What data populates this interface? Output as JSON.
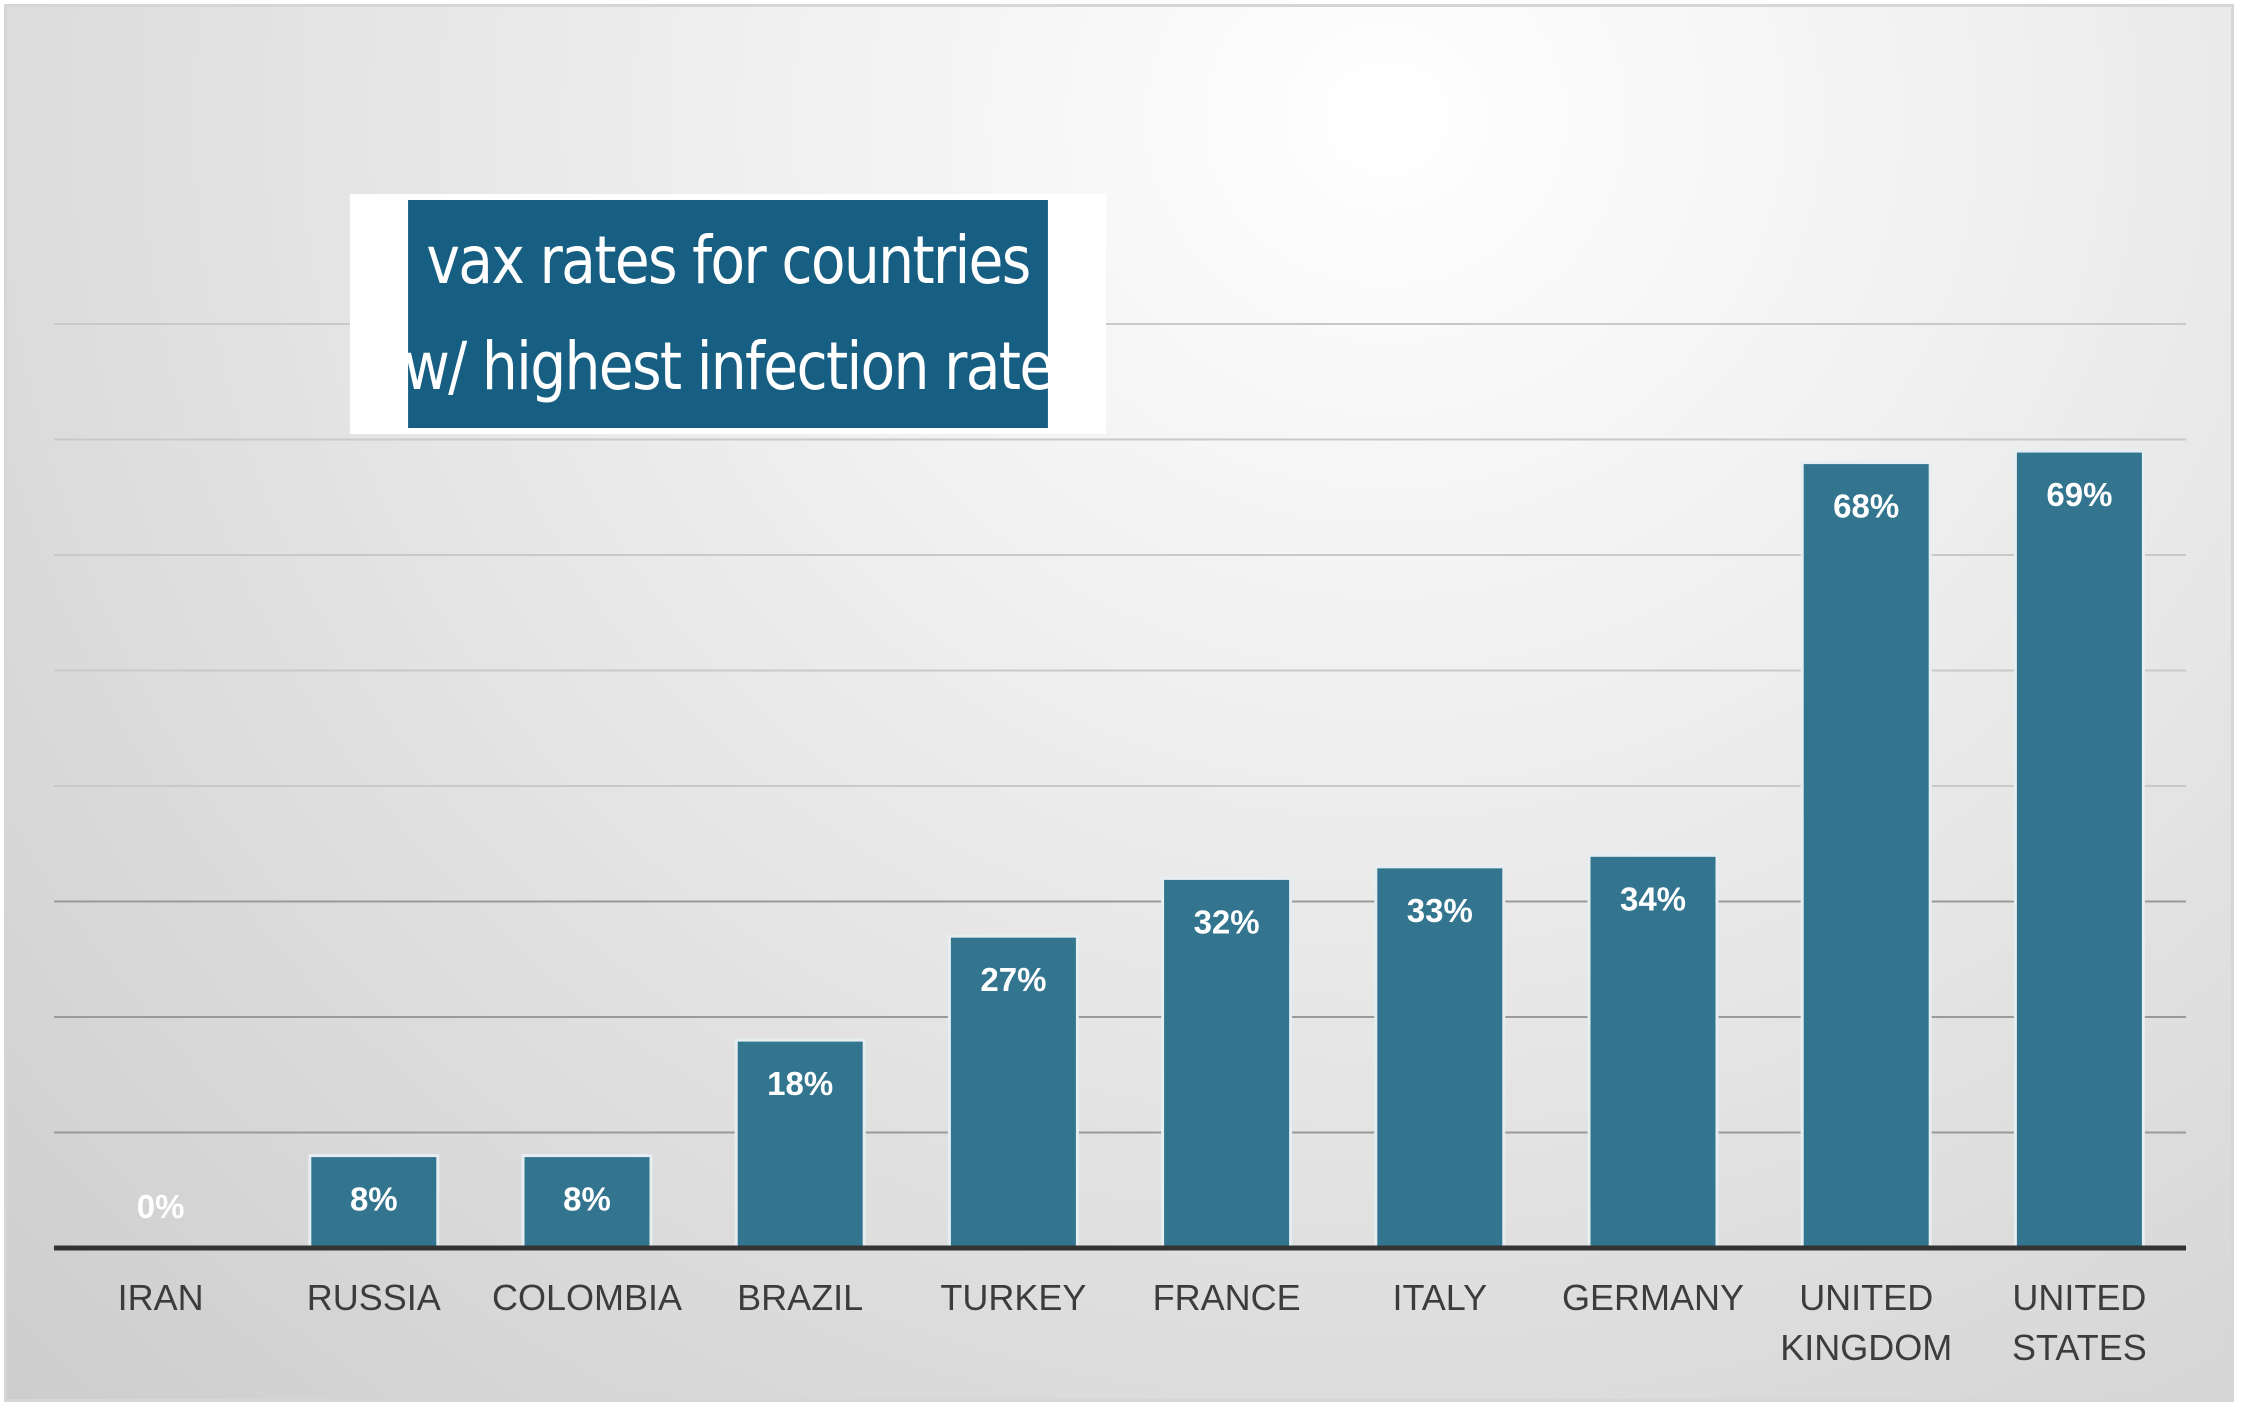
{
  "chart_data": {
    "type": "bar",
    "title": "vax rates for countries w/ highest infection rate",
    "title_lines": [
      "vax rates for countries",
      "w/ highest infection rate"
    ],
    "categories": [
      [
        "IRAN"
      ],
      [
        "RUSSIA"
      ],
      [
        "COLOMBIA"
      ],
      [
        "BRAZIL"
      ],
      [
        "TURKEY"
      ],
      [
        "FRANCE"
      ],
      [
        "ITALY"
      ],
      [
        "GERMANY"
      ],
      [
        "UNITED",
        "KINGDOM"
      ],
      [
        "UNITED",
        "STATES"
      ]
    ],
    "values": [
      0,
      8,
      8,
      18,
      27,
      32,
      33,
      34,
      68,
      69
    ],
    "value_labels": [
      "0%",
      "8%",
      "8%",
      "18%",
      "27%",
      "32%",
      "33%",
      "34%",
      "68%",
      "69%"
    ],
    "ylim": [
      0,
      80
    ],
    "grid": true,
    "y_axis_labels_shown": false,
    "legend": "none",
    "colors": {
      "bar": "#33758f",
      "bar_outline": "#e6eef2",
      "title_background": "#165e82",
      "gridline": "#a9a9a9",
      "axis": "#333333"
    }
  }
}
